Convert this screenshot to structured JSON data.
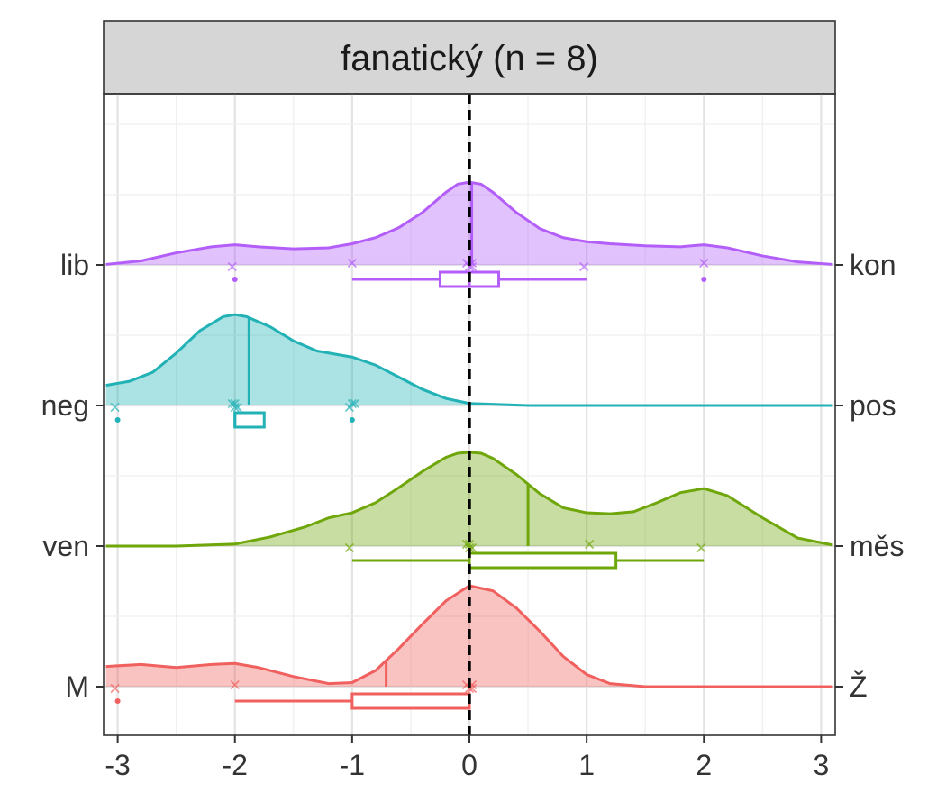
{
  "chart_data": {
    "type": "area",
    "title": "fanatický (n = 8)",
    "xlim": [
      -3.12,
      3.12
    ],
    "x_ticks": [
      "-3",
      "-2",
      "-1",
      "0",
      "1",
      "2",
      "3"
    ],
    "x_tick_values": [
      -3,
      -2,
      -1,
      0,
      1,
      2,
      3
    ],
    "reference_line_x": 0,
    "grid": true,
    "series": [
      {
        "left_label": "lib",
        "right_label": "kon",
        "color": "#B45EFA",
        "density_peak": 0.64,
        "density": {
          "x": [
            -3.1,
            -2.8,
            -2.5,
            -2.2,
            -2.0,
            -1.8,
            -1.5,
            -1.2,
            -1.0,
            -0.8,
            -0.6,
            -0.4,
            -0.2,
            -0.1,
            0.0,
            0.1,
            0.2,
            0.4,
            0.6,
            0.8,
            1.0,
            1.2,
            1.5,
            1.8,
            2.0,
            2.2,
            2.5,
            2.8,
            3.1
          ],
          "y": [
            0.005,
            0.04,
            0.12,
            0.18,
            0.2,
            0.18,
            0.16,
            0.17,
            0.21,
            0.27,
            0.37,
            0.52,
            0.72,
            0.8,
            0.82,
            0.8,
            0.72,
            0.52,
            0.36,
            0.27,
            0.23,
            0.21,
            0.19,
            0.18,
            0.2,
            0.17,
            0.09,
            0.03,
            0.005
          ]
        },
        "points": [
          -2,
          -1,
          0,
          0,
          0,
          0,
          1,
          2
        ],
        "box": {
          "whisker_low": -1,
          "q1": -0.25,
          "median": 0,
          "q3": 0.25,
          "whisker_high": 1
        },
        "outliers": [
          -2,
          2
        ]
      },
      {
        "left_label": "neg",
        "right_label": "pos",
        "color": "#22B2B6",
        "density_peak": 0.7,
        "density": {
          "x": [
            -3.1,
            -2.9,
            -2.7,
            -2.5,
            -2.3,
            -2.1,
            -2.0,
            -1.9,
            -1.7,
            -1.5,
            -1.3,
            -1.1,
            -1.0,
            -0.8,
            -0.6,
            -0.4,
            -0.2,
            0.0,
            0.5,
            1.0,
            2.0,
            3.1
          ],
          "y": [
            0.2,
            0.24,
            0.33,
            0.52,
            0.74,
            0.88,
            0.9,
            0.88,
            0.78,
            0.64,
            0.54,
            0.5,
            0.48,
            0.4,
            0.28,
            0.16,
            0.07,
            0.02,
            0.0,
            0.0,
            0.0,
            0.0
          ]
        },
        "points": [
          -3,
          -2,
          -2,
          -2,
          -2,
          -1,
          -1,
          -1
        ],
        "box": {
          "whisker_low": -2,
          "q1": -2,
          "median": -2,
          "q3": -1.75,
          "whisker_high": -1.75
        },
        "outliers": [
          -3,
          -1
        ]
      },
      {
        "left_label": "ven",
        "right_label": "měs",
        "color": "#6FA60A",
        "density_peak": 0.7,
        "density": {
          "x": [
            -3.1,
            -2.5,
            -2.0,
            -1.7,
            -1.4,
            -1.2,
            -1.0,
            -0.8,
            -0.6,
            -0.4,
            -0.2,
            -0.1,
            0.0,
            0.1,
            0.2,
            0.4,
            0.6,
            0.8,
            1.0,
            1.2,
            1.4,
            1.6,
            1.8,
            2.0,
            2.2,
            2.5,
            2.8,
            3.1
          ],
          "y": [
            0.0,
            0.0,
            0.02,
            0.09,
            0.19,
            0.28,
            0.33,
            0.43,
            0.58,
            0.74,
            0.88,
            0.92,
            0.93,
            0.92,
            0.87,
            0.71,
            0.52,
            0.38,
            0.33,
            0.32,
            0.34,
            0.43,
            0.53,
            0.57,
            0.5,
            0.28,
            0.08,
            0.01
          ]
        },
        "points": [
          -1,
          0,
          0,
          0,
          0,
          1,
          2
        ],
        "box": {
          "whisker_low": -1,
          "q1": 0,
          "median": 0,
          "q3": 1.25,
          "whisker_high": 2
        },
        "outliers": []
      },
      {
        "left_label": "M",
        "right_label": "Ž",
        "color": "#F0605E",
        "density_peak": 0.8,
        "density": {
          "x": [
            -3.1,
            -2.8,
            -2.5,
            -2.2,
            -2.0,
            -1.8,
            -1.5,
            -1.2,
            -1.0,
            -0.8,
            -0.6,
            -0.4,
            -0.2,
            0.0,
            0.2,
            0.4,
            0.6,
            0.8,
            1.0,
            1.2,
            1.5,
            2.0,
            2.5,
            3.1
          ],
          "y": [
            0.2,
            0.22,
            0.19,
            0.22,
            0.23,
            0.19,
            0.1,
            0.03,
            0.04,
            0.16,
            0.38,
            0.62,
            0.85,
            1.0,
            0.95,
            0.78,
            0.55,
            0.3,
            0.12,
            0.03,
            0.0,
            0.0,
            0.0,
            0.0
          ]
        },
        "points": [
          -3,
          -2,
          0,
          0,
          0,
          0
        ],
        "box": {
          "whisker_low": -2,
          "q1": -1,
          "median": 0,
          "q3": 0,
          "whisker_high": 0
        },
        "outliers": [
          -3
        ]
      }
    ]
  }
}
